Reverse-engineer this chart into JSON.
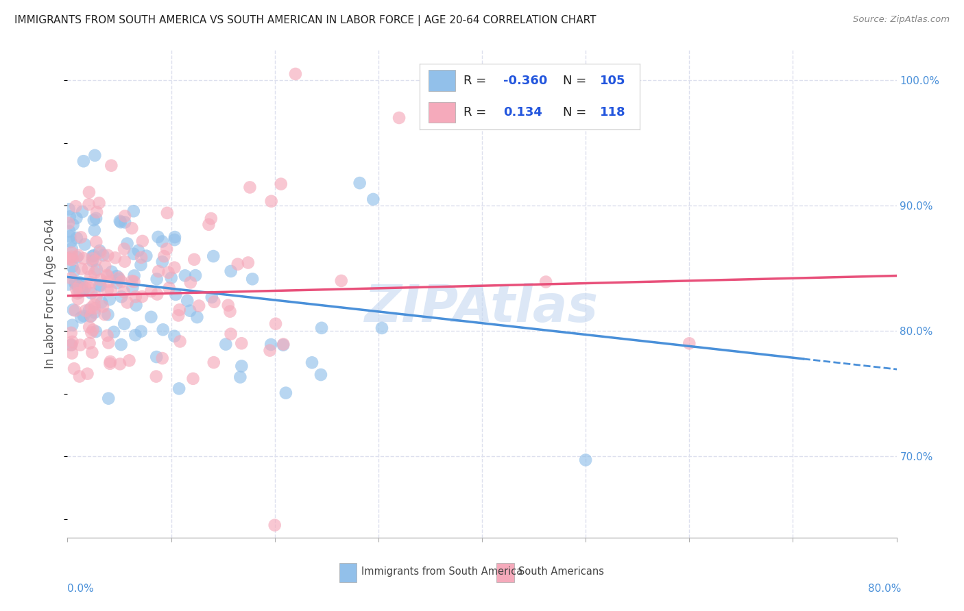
{
  "title": "IMMIGRANTS FROM SOUTH AMERICA VS SOUTH AMERICAN IN LABOR FORCE | AGE 20-64 CORRELATION CHART",
  "source": "Source: ZipAtlas.com",
  "ylabel": "In Labor Force | Age 20-64",
  "ylabel_right_ticks": [
    "100.0%",
    "90.0%",
    "80.0%",
    "70.0%"
  ],
  "ylabel_right_vals": [
    1.0,
    0.9,
    0.8,
    0.7
  ],
  "xlim": [
    0.0,
    0.8
  ],
  "ylim": [
    0.635,
    1.025
  ],
  "blue_R": -0.36,
  "blue_N": 105,
  "pink_R": 0.134,
  "pink_N": 118,
  "blue_color": "#92c0ea",
  "pink_color": "#f5aabb",
  "blue_label": "Immigrants from South America",
  "pink_label": "South Americans",
  "trend_blue_color": "#4a90d9",
  "trend_pink_color": "#e8507a",
  "legend_color": "#2255dd",
  "axis_label_color": "#4a90d9",
  "title_color": "#222222",
  "grid_color": "#dde0ee",
  "watermark_color": "#c5d8f0",
  "bg_color": "#ffffff"
}
